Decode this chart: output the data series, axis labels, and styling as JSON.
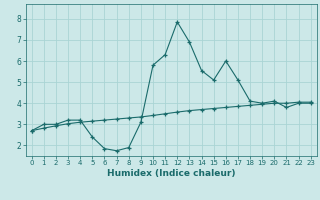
{
  "xlabel": "Humidex (Indice chaleur)",
  "ylabel": "",
  "background_color": "#cce8e8",
  "line_color": "#1a6b6b",
  "grid_color": "#aad4d4",
  "xlim": [
    -0.5,
    23.5
  ],
  "ylim": [
    1.5,
    8.7
  ],
  "xticks": [
    0,
    1,
    2,
    3,
    4,
    5,
    6,
    7,
    8,
    9,
    10,
    11,
    12,
    13,
    14,
    15,
    16,
    17,
    18,
    19,
    20,
    21,
    22,
    23
  ],
  "yticks": [
    2,
    3,
    4,
    5,
    6,
    7,
    8
  ],
  "curve1_x": [
    0,
    1,
    2,
    3,
    4,
    5,
    6,
    7,
    8,
    9,
    10,
    11,
    12,
    13,
    14,
    15,
    16,
    17,
    18,
    19,
    20,
    21,
    22,
    23
  ],
  "curve1_y": [
    2.7,
    3.0,
    3.0,
    3.2,
    3.2,
    2.4,
    1.85,
    1.75,
    1.9,
    3.1,
    5.8,
    6.3,
    7.85,
    6.9,
    5.55,
    5.1,
    6.0,
    5.1,
    4.1,
    4.0,
    4.1,
    3.8,
    4.0,
    4.0
  ],
  "curve2_x": [
    0,
    1,
    2,
    3,
    4,
    5,
    6,
    7,
    8,
    9,
    10,
    11,
    12,
    13,
    14,
    15,
    16,
    17,
    18,
    19,
    20,
    21,
    22,
    23
  ],
  "curve2_y": [
    2.7,
    2.82,
    2.93,
    3.03,
    3.1,
    3.15,
    3.2,
    3.25,
    3.3,
    3.35,
    3.42,
    3.5,
    3.58,
    3.65,
    3.7,
    3.75,
    3.8,
    3.85,
    3.9,
    3.95,
    4.0,
    4.0,
    4.05,
    4.05
  ]
}
